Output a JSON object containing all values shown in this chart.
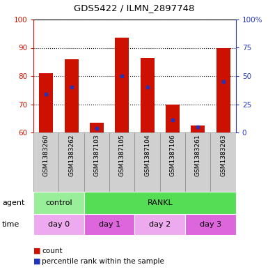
{
  "title": "GDS5422 / ILMN_2897748",
  "samples": [
    "GSM1383260",
    "GSM1383262",
    "GSM1387103",
    "GSM1387105",
    "GSM1387104",
    "GSM1387106",
    "GSM1383261",
    "GSM1383263"
  ],
  "count_values": [
    81,
    86,
    63.5,
    93.5,
    86.5,
    70,
    62.5,
    90
  ],
  "percentile_values": [
    73.5,
    76,
    61.5,
    80,
    76,
    64.5,
    62,
    78
  ],
  "bar_bottom": 60,
  "ylim": [
    60,
    100
  ],
  "ylim_right": [
    0,
    100
  ],
  "yticks_left": [
    60,
    70,
    80,
    90,
    100
  ],
  "yticks_right": [
    0,
    25,
    50,
    75,
    100
  ],
  "bar_color": "#cc1100",
  "percentile_color": "#2233bb",
  "agent_groups": [
    {
      "label": "control",
      "start": 0,
      "end": 2,
      "color": "#99ee99"
    },
    {
      "label": "RANKL",
      "start": 2,
      "end": 8,
      "color": "#55dd55"
    }
  ],
  "time_groups": [
    {
      "label": "day 0",
      "start": 0,
      "end": 2,
      "color": "#eeaaee"
    },
    {
      "label": "day 1",
      "start": 2,
      "end": 4,
      "color": "#dd66dd"
    },
    {
      "label": "day 2",
      "start": 4,
      "end": 6,
      "color": "#eeaaee"
    },
    {
      "label": "day 3",
      "start": 6,
      "end": 8,
      "color": "#dd66dd"
    }
  ],
  "agent_label": "agent",
  "time_label": "time",
  "legend_count": "count",
  "legend_percentile": "percentile rank within the sample",
  "bar_width": 0.55,
  "plot_bg": "#ffffff",
  "gray_label_bg": "#d0d0d0",
  "border_color": "#888888"
}
